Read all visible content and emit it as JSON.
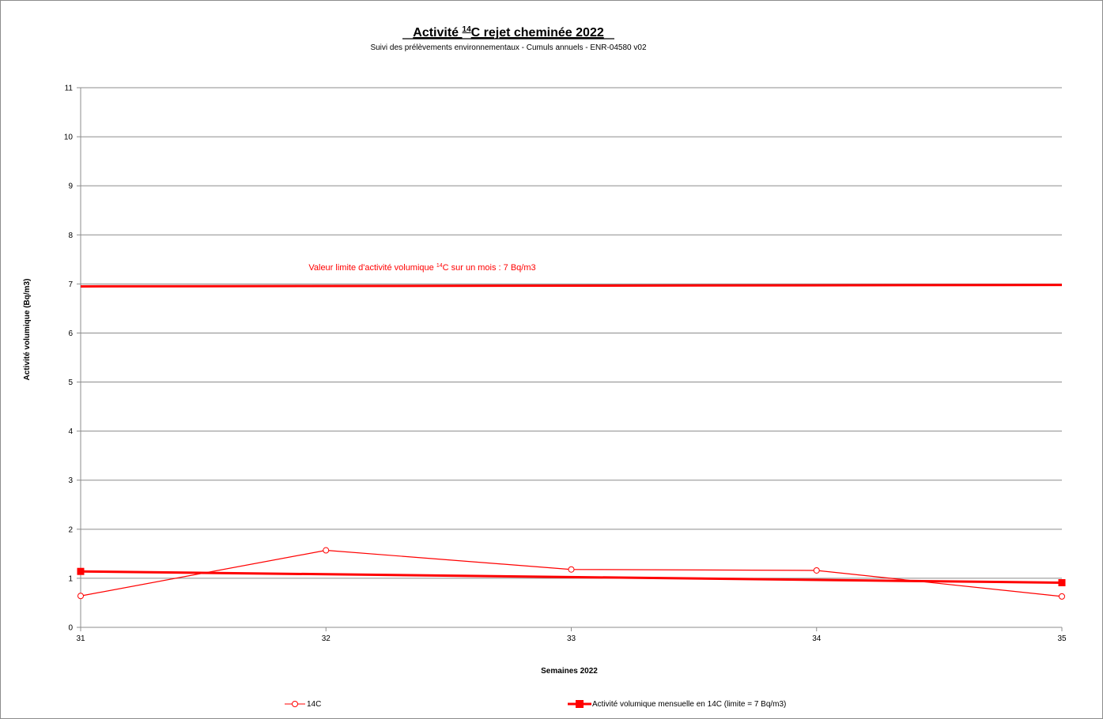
{
  "chart_data": {
    "type": "line",
    "title": {
      "prefix": "Activité ",
      "superscript": "14",
      "suffix": "C rejet cheminée 2022"
    },
    "subtitle": "Suivi des prélèvements environnementaux - Cumuls annuels - ENR-04580 v02",
    "xlabel": "Semaines 2022",
    "ylabel": "Activité volumique (Bq/m3)",
    "x": [
      31,
      32,
      33,
      34,
      35
    ],
    "x_tick_labels": [
      "31",
      "32",
      "33",
      "34",
      "35"
    ],
    "ylim": [
      0,
      11
    ],
    "y_tick_labels": [
      "0",
      "1",
      "2",
      "3",
      "4",
      "5",
      "6",
      "7",
      "8",
      "9",
      "10",
      "11"
    ],
    "grid": true,
    "legend_position": "bottom",
    "series": [
      {
        "name": "14C",
        "color": "#ff0000",
        "marker": "open-circle",
        "x": [
          31,
          32,
          33,
          34,
          35
        ],
        "values": [
          0.64,
          1.57,
          1.18,
          1.16,
          0.63
        ]
      },
      {
        "name": "Activité  volumique mensuelle en 14C  (limite = 7 Bq/m3)",
        "color": "#ff0000",
        "marker": "filled-square",
        "x": [
          31,
          35
        ],
        "values": [
          1.14,
          0.91
        ]
      }
    ],
    "limit_line": {
      "x": [
        31,
        35
      ],
      "values": [
        6.95,
        6.98
      ],
      "color": "#ff0000"
    },
    "annotation": {
      "prefix": "Valeur limite d'activité volumique ",
      "superscript": "14",
      "suffix": "C sur un mois : 7 Bq/m3"
    }
  }
}
